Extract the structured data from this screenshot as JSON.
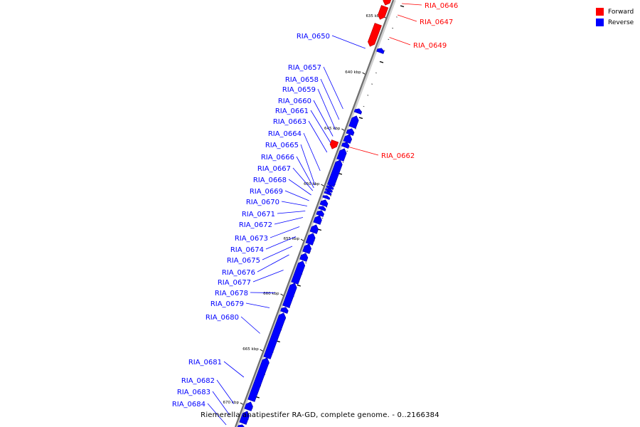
{
  "legend": {
    "forward_label": "Forward",
    "reverse_label": "Reverse",
    "forward_color": "#ff0000",
    "reverse_color": "#0000ff"
  },
  "footer": "Riemerella anatipestifer RA-GD, complete genome. - 0..2166384",
  "ruler": {
    "unit": "kbp",
    "major_labels": [
      "635 kbp",
      "640 kbp",
      "645 kbp",
      "650 kbp",
      "655 kbp",
      "660 kbp",
      "665 kbp",
      "670 kbp"
    ]
  },
  "features": {
    "forward": [
      "RIA_0646",
      "RIA_0647",
      "RIA_0649",
      "RIA_0662"
    ],
    "reverse": [
      "RIA_0650",
      "RIA_0657",
      "RIA_0658",
      "RIA_0659",
      "RIA_0660",
      "RIA_0661",
      "RIA_0663",
      "RIA_0664",
      "RIA_0665",
      "RIA_0666",
      "RIA_0667",
      "RIA_0668",
      "RIA_0669",
      "RIA_0670",
      "RIA_0671",
      "RIA_0672",
      "RIA_0673",
      "RIA_0674",
      "RIA_0675",
      "RIA_0676",
      "RIA_0677",
      "RIA_0678",
      "RIA_0679",
      "RIA_0680",
      "RIA_0681",
      "RIA_0682",
      "RIA_0683",
      "RIA_0684"
    ]
  }
}
